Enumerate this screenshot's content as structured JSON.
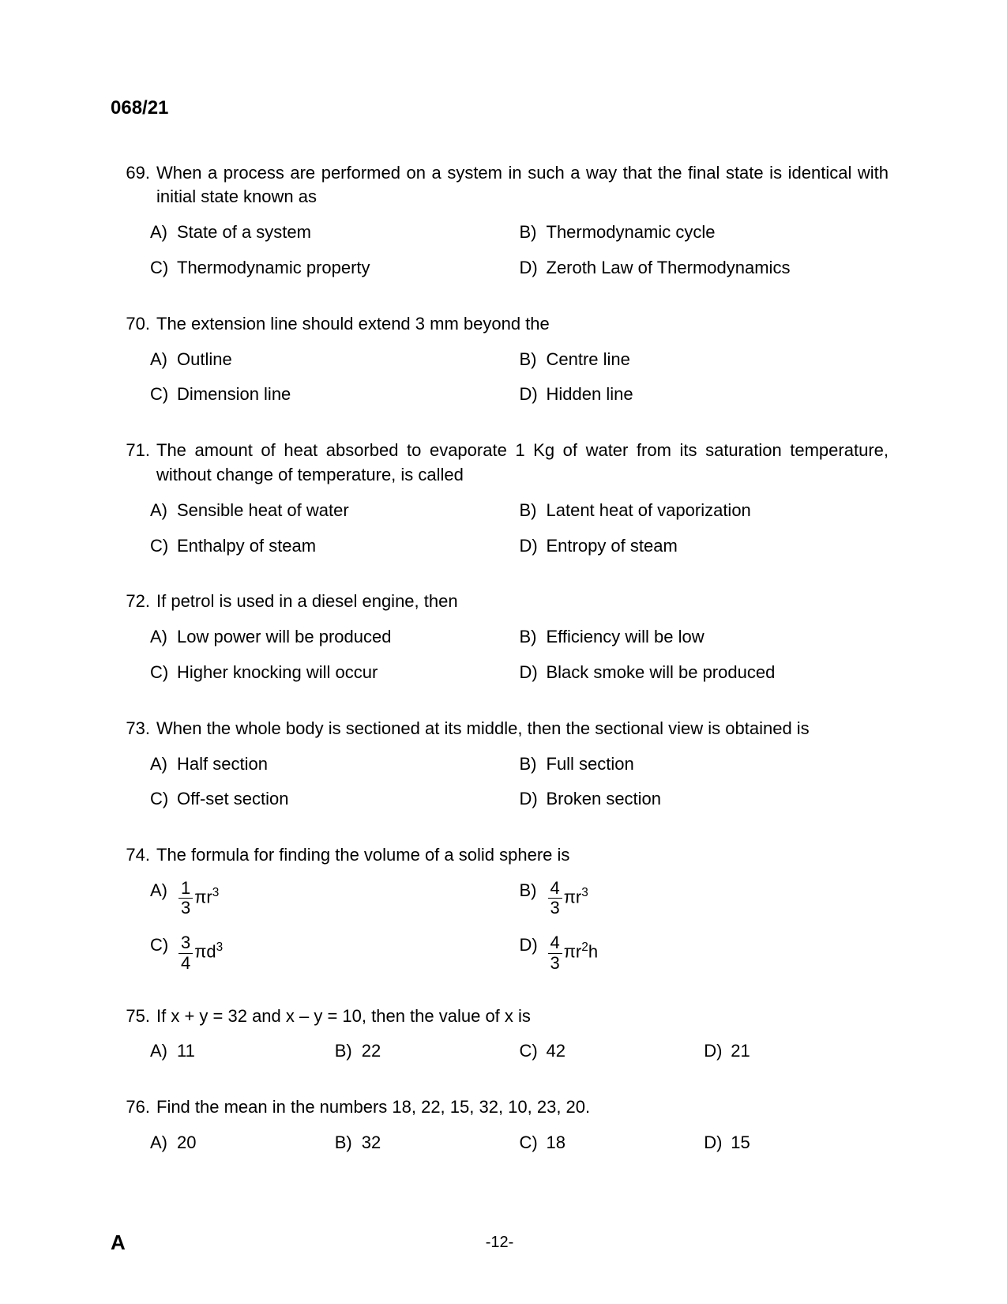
{
  "header": "068/21",
  "footer": {
    "left": "A",
    "center": "-12-"
  },
  "questions": [
    {
      "num": "69.",
      "text": "When a process are performed on a system in such a way that the final state is identical with initial state known as",
      "layout": "2col",
      "options": [
        {
          "letter": "A)",
          "text": "State of a system"
        },
        {
          "letter": "B)",
          "text": "Thermodynamic cycle"
        },
        {
          "letter": "C)",
          "text": "Thermodynamic property"
        },
        {
          "letter": "D)",
          "text": "Zeroth Law of Thermodynamics"
        }
      ]
    },
    {
      "num": "70.",
      "text": "The extension line should extend 3 mm beyond the",
      "layout": "2col",
      "options": [
        {
          "letter": "A)",
          "text": "Outline"
        },
        {
          "letter": "B)",
          "text": "Centre line"
        },
        {
          "letter": "C)",
          "text": "Dimension line"
        },
        {
          "letter": "D)",
          "text": "Hidden line"
        }
      ]
    },
    {
      "num": "71.",
      "text": "The amount of heat absorbed to evaporate 1 Kg of water from its saturation temperature, without change of temperature, is called",
      "layout": "2col",
      "options": [
        {
          "letter": "A)",
          "text": "Sensible heat of water"
        },
        {
          "letter": "B)",
          "text": "Latent heat of vaporization"
        },
        {
          "letter": "C)",
          "text": "Enthalpy of steam"
        },
        {
          "letter": "D)",
          "text": "Entropy of steam"
        }
      ]
    },
    {
      "num": "72.",
      "text": "If petrol is used in a diesel engine, then",
      "layout": "2col",
      "options": [
        {
          "letter": "A)",
          "text": "Low power will be produced"
        },
        {
          "letter": "B)",
          "text": "Efficiency will be low"
        },
        {
          "letter": "C)",
          "text": "Higher knocking will occur"
        },
        {
          "letter": "D)",
          "text": "Black smoke will be produced"
        }
      ]
    },
    {
      "num": "73.",
      "text": "When the whole body is sectioned at its middle, then the sectional view is obtained is",
      "layout": "2col",
      "options": [
        {
          "letter": "A)",
          "text": "Half section"
        },
        {
          "letter": "B)",
          "text": "Full section"
        },
        {
          "letter": "C)",
          "text": "Off-set section"
        },
        {
          "letter": "D)",
          "text": "Broken section"
        }
      ]
    },
    {
      "num": "74.",
      "text": "The formula for finding the volume of a solid sphere is",
      "layout": "2col-formula",
      "options": [
        {
          "letter": "A)",
          "frac_num": "1",
          "frac_den": "3",
          "after": "πr",
          "sup": "3"
        },
        {
          "letter": "B)",
          "frac_num": "4",
          "frac_den": "3",
          "after": "πr",
          "sup": "3"
        },
        {
          "letter": "C)",
          "frac_num": "3",
          "frac_den": "4",
          "after": "πd",
          "sup": "3"
        },
        {
          "letter": "D)",
          "frac_num": "4",
          "frac_den": "3",
          "after": "πr",
          "sup": "2",
          "after2": "h"
        }
      ]
    },
    {
      "num": "75.",
      "text": "If x + y = 32 and x – y = 10, then the value of x is",
      "layout": "4col",
      "options": [
        {
          "letter": "A)",
          "text": "11"
        },
        {
          "letter": "B)",
          "text": "22"
        },
        {
          "letter": "C)",
          "text": "42"
        },
        {
          "letter": "D)",
          "text": "21"
        }
      ]
    },
    {
      "num": "76.",
      "text": "Find the mean in the numbers 18, 22, 15, 32, 10, 23, 20.",
      "layout": "4col",
      "options": [
        {
          "letter": "A)",
          "text": "20"
        },
        {
          "letter": "B)",
          "text": "32"
        },
        {
          "letter": "C)",
          "text": "18"
        },
        {
          "letter": "D)",
          "text": "15"
        }
      ]
    }
  ]
}
